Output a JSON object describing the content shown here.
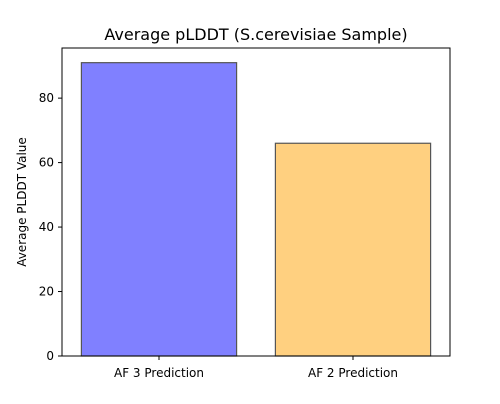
{
  "chart_data": {
    "type": "bar",
    "title": "Average pLDDT (S.cerevisiae Sample)",
    "xlabel": "",
    "ylabel": "Average PLDDT Value",
    "categories": [
      "AF 3 Prediction",
      "AF 2 Prediction"
    ],
    "values": [
      91,
      66
    ],
    "ylim": [
      0,
      95.55
    ],
    "yticks": [
      0,
      20,
      40,
      60,
      80
    ],
    "ytick_labels": [
      "0",
      "20",
      "40",
      "60",
      "80"
    ],
    "bar_colors": [
      "#8080ff",
      "#ffd080"
    ],
    "bar_edge_color": "#555555",
    "grid": false,
    "legend": "none"
  }
}
